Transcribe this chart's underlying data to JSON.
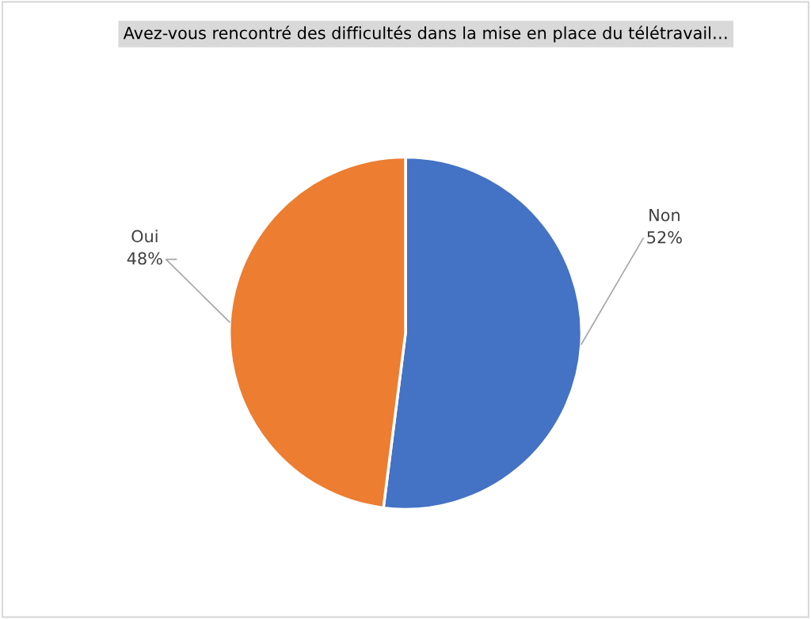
{
  "chart_data": {
    "type": "pie",
    "title": "Avez-vous rencontré des difficultés dans la mise en place du télétravail…",
    "categories": [
      "Non",
      "Oui"
    ],
    "values": [
      52,
      48
    ],
    "value_labels": [
      "52%",
      "48%"
    ],
    "colors": [
      "#4472c4",
      "#ed7d31"
    ],
    "legend": false
  }
}
